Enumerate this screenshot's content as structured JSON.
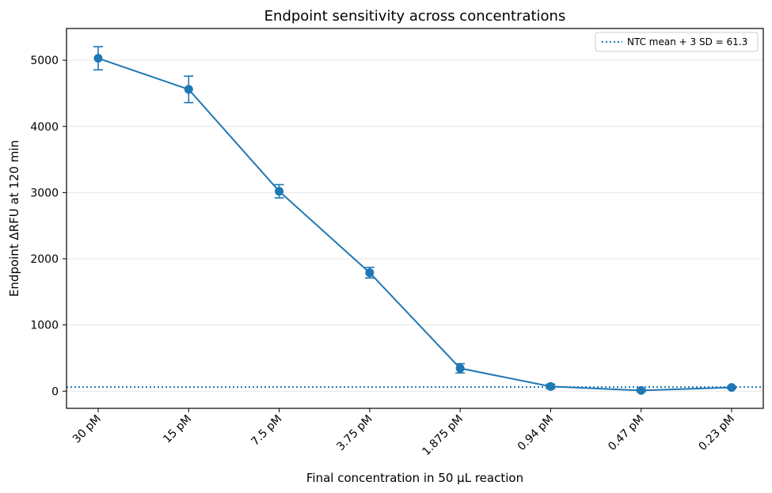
{
  "chart_data": {
    "type": "line",
    "title": "Endpoint sensitivity across concentrations",
    "xlabel": "Final concentration in 50 µL reaction",
    "ylabel": "Endpoint ΔRFU at 120 min",
    "categories": [
      "30 pM",
      "15 pM",
      "7.5 pM",
      "3.75 pM",
      "1.875 pM",
      "0.94 pM",
      "0.47 pM",
      "0.23 pM"
    ],
    "series": [
      {
        "values": [
          5030,
          4560,
          3020,
          1790,
          345,
          70,
          10,
          55
        ],
        "errors": [
          175,
          200,
          100,
          80,
          70,
          35,
          20,
          15
        ],
        "color": "#1f77b4"
      }
    ],
    "threshold": {
      "label": "NTC mean + 3 SD = 61.3",
      "value": 61.3,
      "color": "#1f77b4",
      "style": "dotted"
    },
    "yticks": [
      0,
      1000,
      2000,
      3000,
      4000,
      5000
    ],
    "ylim": [
      -260,
      5480
    ],
    "grid": "horizontal",
    "legend_position": "top-right"
  }
}
